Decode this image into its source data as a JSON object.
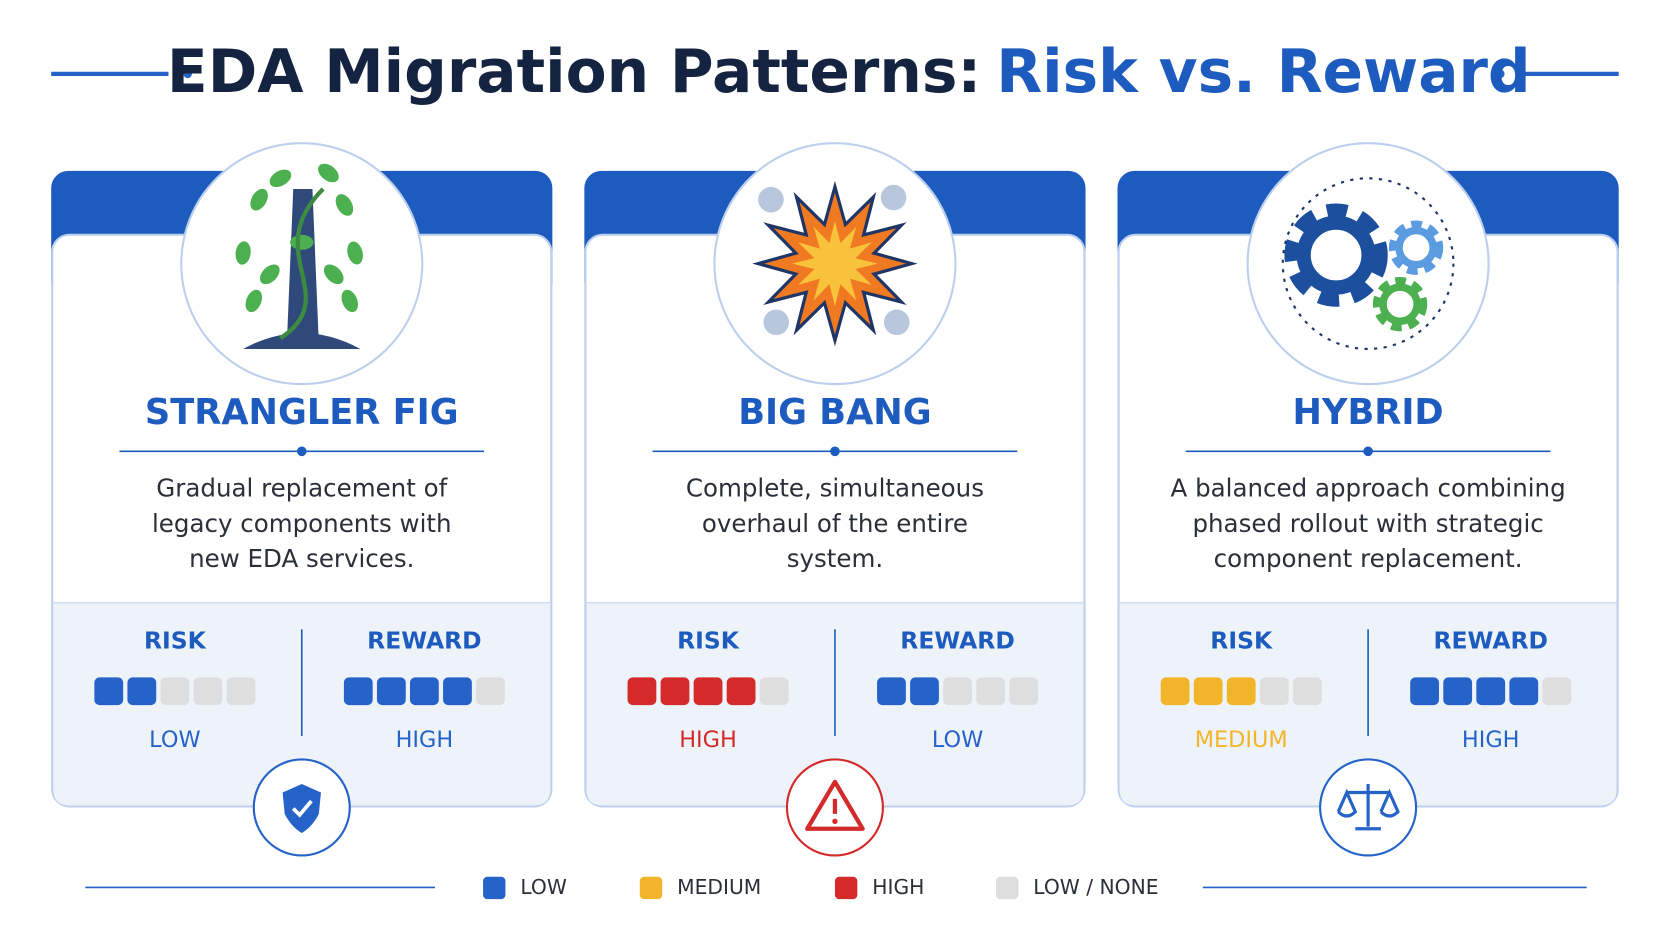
{
  "header": {
    "title_main": "EDA Migration Patterns:",
    "title_highlight": "Risk vs. Reward"
  },
  "cards": [
    {
      "name": "STRANGLER FIG",
      "description": [
        "Gradual replacement of",
        "legacy components with",
        "new EDA services."
      ],
      "risk": {
        "label": "RISK",
        "filled": 2,
        "total": 5,
        "level": "LOW",
        "color": "#2563c9"
      },
      "reward": {
        "label": "REWARD",
        "filled": 4,
        "total": 5,
        "level": "HIGH",
        "color": "#2563c9"
      }
    },
    {
      "name": "BIG BANG",
      "description": [
        "Complete, simultaneous",
        "overhaul of the entire",
        "system."
      ],
      "risk": {
        "label": "RISK",
        "filled": 4,
        "total": 5,
        "level": "HIGH",
        "color": "#d42a2a"
      },
      "reward": {
        "label": "REWARD",
        "filled": 2,
        "total": 5,
        "level": "LOW",
        "color": "#2563c9"
      }
    },
    {
      "name": "HYBRID",
      "description": [
        "A balanced approach combining",
        "phased rollout with strategic",
        "component replacement."
      ],
      "risk": {
        "label": "RISK",
        "filled": 3,
        "total": 5,
        "level": "MEDIUM",
        "color": "#f2b52a"
      },
      "reward": {
        "label": "REWARD",
        "filled": 4,
        "total": 5,
        "level": "HIGH",
        "color": "#2563c9"
      }
    }
  ],
  "legend": [
    {
      "label": "LOW",
      "color": "#2563c9"
    },
    {
      "label": "MEDIUM",
      "color": "#f2b52a"
    },
    {
      "label": "HIGH",
      "color": "#d42a2a"
    },
    {
      "label": "LOW / NONE",
      "color": "#dedede"
    }
  ]
}
